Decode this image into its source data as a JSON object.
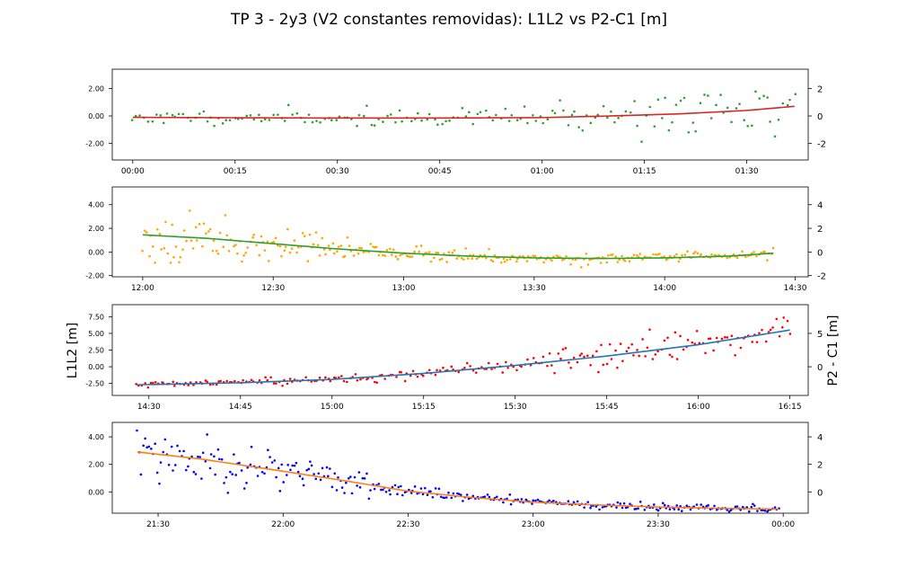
{
  "figure": {
    "title": "TP 3 - 2y3 (V2 constantes removidas):   L1L2 vs P2-C1 [m]",
    "left_ylabel": "L1L2 [m]",
    "right_ylabel": "P2 - C1 [m]"
  },
  "chart_data": [
    {
      "type": "scatter",
      "x_unit": "time",
      "xlim": [
        "23:57",
        "01:39"
      ],
      "xticks": [
        "00:00",
        "00:15",
        "00:30",
        "00:45",
        "01:00",
        "01:15",
        "01:30"
      ],
      "left_ylim": [
        -3.2,
        3.4
      ],
      "left_yticks": [
        "-2.00",
        "0.00",
        "2.00"
      ],
      "right_yticks": [
        "-2",
        "0",
        "2"
      ],
      "point_color": "#2ca02c",
      "fit_color": "#d62728",
      "points": {
        "t_start": "00:00",
        "t_end": "01:37",
        "count": 170,
        "seed": 11
      },
      "fit": {
        "x": [
          "00:00",
          "00:15",
          "00:30",
          "00:45",
          "01:00",
          "01:10",
          "01:20",
          "01:30",
          "01:37"
        ],
        "y": [
          -0.1,
          -0.13,
          -0.15,
          -0.15,
          -0.12,
          0.0,
          0.15,
          0.4,
          0.7
        ]
      },
      "noise": {
        "x": [
          "00:00",
          "00:30",
          "00:55",
          "01:05",
          "01:20",
          "01:37"
        ],
        "sd": [
          0.3,
          0.4,
          0.5,
          0.9,
          1.2,
          1.3
        ]
      }
    },
    {
      "type": "scatter",
      "x_unit": "time",
      "xlim": [
        "11:53",
        "14:33"
      ],
      "xticks": [
        "12:00",
        "12:30",
        "13:00",
        "13:30",
        "14:00",
        "14:30"
      ],
      "left_ylim": [
        -2.1,
        5.5
      ],
      "left_yticks": [
        "-2.00",
        "0.00",
        "2.00",
        "4.00"
      ],
      "right_yticks": [
        "-2",
        "0",
        "2",
        "4"
      ],
      "point_color": "#ffa500",
      "fit_color": "#2ca02c",
      "points": {
        "t_start": "12:00",
        "t_end": "14:25",
        "count": 300,
        "seed": 23
      },
      "fit": {
        "x": [
          "12:00",
          "12:15",
          "12:30",
          "12:45",
          "13:00",
          "13:15",
          "13:30",
          "13:45",
          "14:00",
          "14:15",
          "14:25"
        ],
        "y": [
          1.45,
          1.15,
          0.7,
          0.25,
          -0.1,
          -0.35,
          -0.5,
          -0.55,
          -0.5,
          -0.35,
          -0.1
        ]
      },
      "noise": {
        "x": [
          "12:00",
          "12:15",
          "12:30",
          "12:45",
          "13:00",
          "13:30",
          "14:25"
        ],
        "sd": [
          1.5,
          1.4,
          1.0,
          0.6,
          0.45,
          0.3,
          0.3
        ]
      }
    },
    {
      "type": "scatter",
      "x_unit": "time",
      "xlim": [
        "14:24",
        "16:18"
      ],
      "xticks": [
        "14:30",
        "14:45",
        "15:00",
        "15:15",
        "15:30",
        "15:45",
        "16:00",
        "16:15"
      ],
      "left_ylim": [
        -4.3,
        9.3
      ],
      "left_yticks": [
        "-2.50",
        "0.00",
        "2.50",
        "5.00",
        "7.50"
      ],
      "right_yticks": [
        "0",
        "5"
      ],
      "point_color": "#ff0000",
      "fit_color": "#1f77b4",
      "points": {
        "t_start": "14:28",
        "t_end": "16:15",
        "count": 240,
        "seed": 37
      },
      "fit": {
        "x": [
          "14:28",
          "14:45",
          "15:00",
          "15:15",
          "15:30",
          "15:45",
          "16:00",
          "16:15"
        ],
        "y": [
          -2.7,
          -2.4,
          -1.9,
          -1.0,
          0.2,
          1.6,
          3.3,
          5.5
        ]
      },
      "noise": {
        "x": [
          "14:28",
          "15:00",
          "15:15",
          "15:30",
          "15:45",
          "16:15"
        ],
        "sd": [
          0.3,
          0.45,
          0.6,
          1.0,
          1.4,
          1.8
        ]
      }
    },
    {
      "type": "scatter",
      "x_unit": "time",
      "xlim": [
        "21:19",
        "00:06"
      ],
      "xticks": [
        "21:30",
        "22:00",
        "22:30",
        "23:00",
        "23:30",
        "00:00"
      ],
      "left_ylim": [
        -1.55,
        5.05
      ],
      "left_yticks": [
        "0.00",
        "2.00",
        "4.00"
      ],
      "right_yticks": [
        "0",
        "2",
        "4"
      ],
      "point_color": "#0000ff",
      "fit_color": "#ff7f0e",
      "points": {
        "t_start": "21:25",
        "t_end": "23:59",
        "count": 320,
        "seed": 53
      },
      "fit": {
        "x": [
          "21:25",
          "21:40",
          "22:00",
          "22:15",
          "22:30",
          "22:45",
          "23:00",
          "23:15",
          "23:30",
          "23:45",
          "23:59"
        ],
        "y": [
          2.9,
          2.4,
          1.5,
          0.8,
          0.05,
          -0.4,
          -0.75,
          -0.95,
          -1.1,
          -1.2,
          -1.25
        ]
      },
      "noise": {
        "x": [
          "21:25",
          "21:45",
          "22:00",
          "22:15",
          "22:30",
          "22:45",
          "23:00",
          "23:59"
        ],
        "sd": [
          1.3,
          1.2,
          0.9,
          0.6,
          0.35,
          0.25,
          0.2,
          0.2
        ]
      }
    }
  ]
}
